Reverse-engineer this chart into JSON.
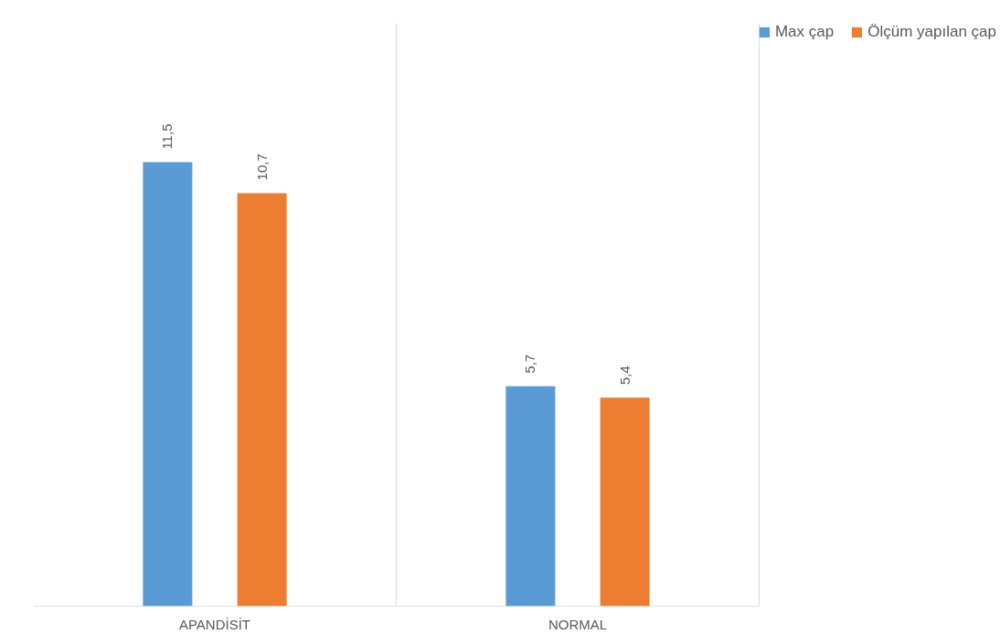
{
  "chart_data": {
    "type": "bar",
    "categories": [
      "APANDİSİT",
      "NORMAL"
    ],
    "series": [
      {
        "name": "Max çap",
        "color": "#5b9bd5",
        "values": [
          11.5,
          5.7
        ],
        "value_labels": [
          "11,5",
          "5,7"
        ]
      },
      {
        "name": "Ölçüm yapılan çap",
        "color": "#ed7d31",
        "values": [
          10.7,
          5.4
        ],
        "value_labels": [
          "10,7",
          "5,4"
        ]
      }
    ],
    "ylim": [
      0,
      15.1
    ],
    "tick_labels": "x",
    "grid": "x",
    "legend": "top right"
  }
}
